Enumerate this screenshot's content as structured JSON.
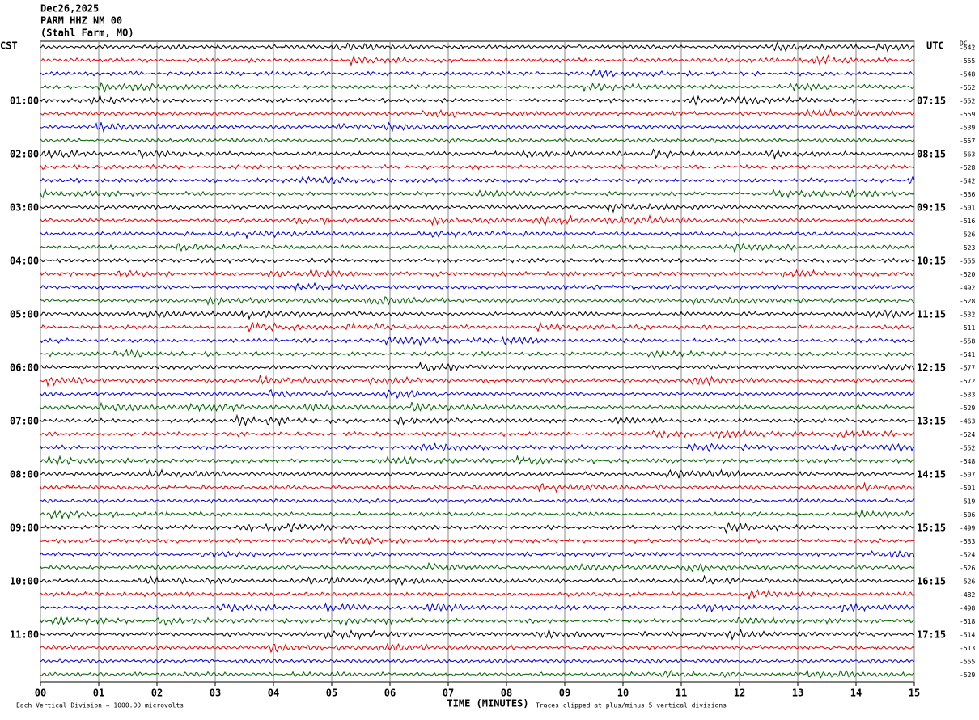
{
  "chart_data": {
    "type": "helicorder",
    "title_lines": [
      "Dec26,2025",
      "PARM HHZ NM 00",
      "(Stahl Farm, MO)"
    ],
    "left_header": "CST",
    "right_header": "UTC",
    "dc_header": "DC",
    "cst_labels": [
      "01:00",
      "02:00",
      "03:00",
      "04:00",
      "05:00",
      "06:00",
      "07:00",
      "08:00",
      "09:00",
      "10:00",
      "11:00"
    ],
    "utc_labels": [
      "07:15",
      "08:15",
      "09:15",
      "10:15",
      "11:15",
      "12:15",
      "13:15",
      "14:15",
      "15:15",
      "16:15",
      "17:15"
    ],
    "dc_values": [
      -542,
      -555,
      -548,
      -562,
      -552,
      -559,
      -539,
      -557,
      -563,
      -528,
      -542,
      -536,
      -501,
      -516,
      -526,
      -523,
      -555,
      -520,
      -492,
      -528,
      -532,
      -511,
      -558,
      -541,
      -577,
      -572,
      -533,
      -529,
      -463,
      -524,
      -552,
      -548,
      -507,
      -501,
      -519,
      -506,
      -499,
      -533,
      -524,
      -526,
      -526,
      -482,
      -498,
      -518,
      -514,
      -513,
      -555,
      -529
    ],
    "trace_colors": [
      "#000000",
      "#e00000",
      "#0000d0",
      "#006000"
    ],
    "xlabel": "TIME (MINUTES)",
    "xlim": [
      0,
      15
    ],
    "xticks": [
      {
        "value": 0,
        "label": "00"
      },
      {
        "value": 1,
        "label": "01"
      },
      {
        "value": 2,
        "label": "02"
      },
      {
        "value": 3,
        "label": "03"
      },
      {
        "value": 4,
        "label": "04"
      },
      {
        "value": 5,
        "label": "05"
      },
      {
        "value": 6,
        "label": "06"
      },
      {
        "value": 7,
        "label": "07"
      },
      {
        "value": 8,
        "label": "08"
      },
      {
        "value": 9,
        "label": "09"
      },
      {
        "value": 10,
        "label": "10"
      },
      {
        "value": 11,
        "label": "11"
      },
      {
        "value": 12,
        "label": "12"
      },
      {
        "value": 13,
        "label": "13"
      },
      {
        "value": 14,
        "label": "14"
      },
      {
        "value": 15,
        "label": "15"
      }
    ],
    "scale_note": "Each Vertical Division = 1000.00 microvolts",
    "clip_note": "Traces clipped at plus/minus 5 vertical divisions"
  }
}
